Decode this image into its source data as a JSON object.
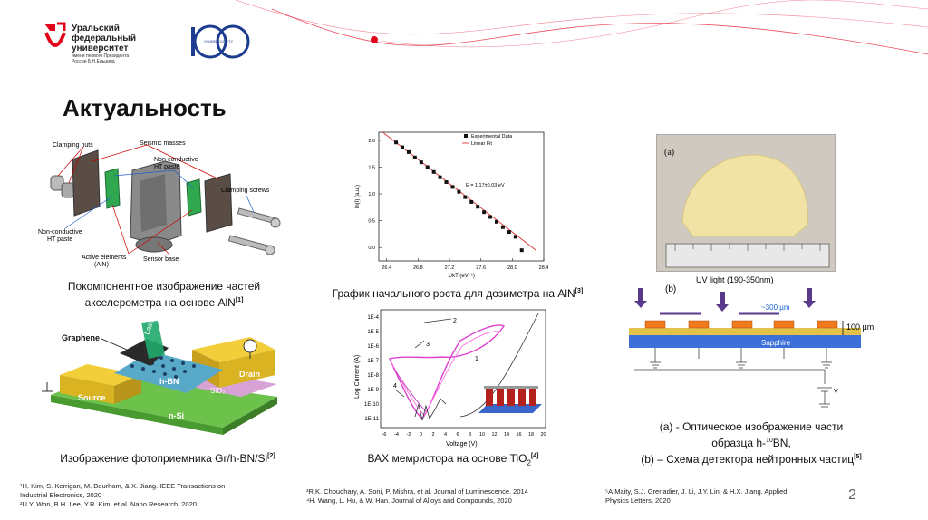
{
  "header": {
    "university_name": [
      "Уральский",
      "федеральный",
      "университет"
    ],
    "university_sub": [
      "имени первого Президента",
      "России Б.Н.Ельцина"
    ],
    "badge_text": "УНИВЕРСИТЕТУ",
    "accent_color": "#e3001b"
  },
  "slide": {
    "title": "Актуальность",
    "page_number": "2"
  },
  "figures": {
    "accel": {
      "labels": {
        "clamping_nuts": "Clamping nuts",
        "seismic_masses": "Seismic masses",
        "non_conductive_top": "Non-conductive",
        "ht_paste_top": "HT paste",
        "clamping_screws": "Clamping screws",
        "non_conductive_left": "Non-conductive",
        "ht_paste_left": "HT paste",
        "active_elements": "Active elements",
        "aln": "(AlN)",
        "sensor_base": "Sensor base"
      },
      "caption_line1": "Покомпонентное изображение частей",
      "caption_line2": "акселерометра на основе AlN",
      "caption_ref": "[1]"
    },
    "graph": {
      "caption": "График начального роста для дозиметра на AlN",
      "caption_ref": "[3]",
      "legend_points": "Experimental Data",
      "legend_line": "Linear Fit",
      "annotation": "E = 1.17±0.03 eV",
      "xlabel": "1/kT (eV⁻¹)",
      "ylabel": "ln(I) (a.u.)"
    },
    "photodetector": {
      "labels": {
        "graphene": "Graphene",
        "laser": "Laser",
        "hbn": "h-BN",
        "drain": "Drain",
        "sio2": "SiO₂",
        "source": "Source",
        "nsi": "n-Si"
      },
      "caption": "Изображение фотоприемника Gr/h-BN/Si",
      "caption_ref": "[2]"
    },
    "memristor": {
      "ylabel": "Log Current (A)",
      "xlabel": "Voltage (V)",
      "ylabels": [
        "1E-4",
        "1E-5",
        "1E-6",
        "1E-7",
        "1E-8",
        "1E-9",
        "1E-10",
        "1E-11"
      ],
      "xlabels": [
        "-6",
        "-4",
        "-2",
        "0",
        "2",
        "4",
        "6",
        "8",
        "10",
        "12",
        "14",
        "16",
        "18",
        "20"
      ],
      "curve_labels": [
        "1",
        "2",
        "3",
        "4"
      ],
      "caption": "ВАХ мемристора на основе TiO",
      "caption_sub": "2",
      "caption_ref": "[4]"
    },
    "detector": {
      "panel_a": "(a)",
      "panel_b": "(b)",
      "uv_label": "UV light (190-350nm)",
      "width_label": "~300 µm",
      "height_label": "100 µm",
      "sapphire": "Sapphire",
      "v_label": "V",
      "caption_line1": "(a) - Оптическое изображение части",
      "caption_line2_pre": "образца h-",
      "caption_line2_sup": "10",
      "caption_line2_post": "BN,",
      "caption_line3": "(b) – Схема детектора нейтронных частиц",
      "caption_ref": "[5]"
    }
  },
  "chart_data": {
    "type": "scatter",
    "title": "",
    "xlabel": "1/kT (eV⁻¹)",
    "ylabel": "ln(I) (a.u.)",
    "xlim": [
      26.3,
      28.4
    ],
    "ylim": [
      -0.25,
      2.15
    ],
    "xticks": [
      "26.4",
      "26.8",
      "27.2",
      "27.6",
      "28.0",
      "28.4"
    ],
    "yticks": [
      "0.0",
      "0.5",
      "1.0",
      "1.5",
      "2.0"
    ],
    "series": [
      {
        "name": "Experimental Data",
        "x": [
          26.52,
          26.6,
          26.68,
          26.76,
          26.84,
          26.92,
          27.0,
          27.08,
          27.16,
          27.24,
          27.32,
          27.4,
          27.48,
          27.56,
          27.64,
          27.72,
          27.8,
          27.88,
          27.96,
          28.04,
          28.12
        ],
        "y": [
          1.96,
          1.87,
          1.78,
          1.68,
          1.59,
          1.5,
          1.41,
          1.31,
          1.22,
          1.13,
          1.04,
          0.94,
          0.85,
          0.76,
          0.66,
          0.57,
          0.48,
          0.38,
          0.29,
          0.2,
          -0.05
        ]
      },
      {
        "name": "Linear Fit",
        "x": [
          26.35,
          28.3
        ],
        "y": [
          2.15,
          -0.05
        ]
      }
    ],
    "annotation": "E = 1.17±0.03 eV",
    "legend": "top-right",
    "grid": false
  },
  "references": {
    "col1": [
      "¹H. Kim, S. Kerrigan, M. Bourham, & X. Jiang.  IEEE Transactions on",
      "Industrial Electronics, 2020",
      "²U.Y. Won, B.H. Lee, Y.R. Kim, et al. Nano Research, 2020"
    ],
    "col2": [
      "³R.K. Choudhary, A. Soni, P. Mishra, et al. Journal of Luminescence. 2014",
      "⁴H. Wang, L. Hu, & W. Han. Journal of Alloys and Compounds, 2020"
    ],
    "col3": [
      "⁵A.Maity, S.J. Grenadier, J. Li, J.Y. Lin, & H.X. Jiang. Applied",
      "Physics Letters, 2020"
    ]
  }
}
